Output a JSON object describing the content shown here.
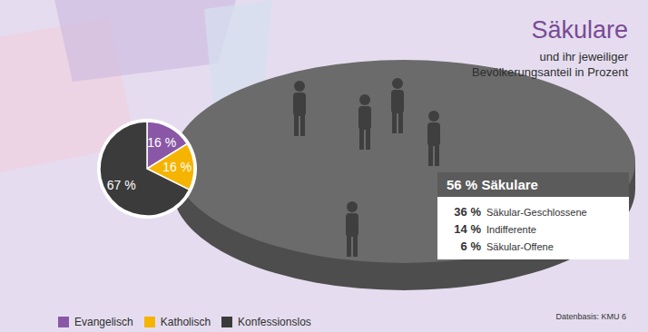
{
  "chart_data": {
    "type": "pie",
    "title": "Säkulare",
    "subtitle": "und ihr jeweiliger Bevölkerungsanteil in Prozent",
    "categories": [
      "Evangelisch",
      "Katholisch",
      "Konfessionslos"
    ],
    "values": [
      16,
      16,
      67
    ],
    "value_labels": [
      "16 %",
      "16 %",
      "67 %"
    ],
    "colors": [
      "#8a57a6",
      "#f5b400",
      "#3b3b3b"
    ],
    "data_labels": true,
    "legend": "bottom",
    "annotations": [
      {
        "text": "Säkulare",
        "value": 56,
        "value_label": "56 %",
        "items": [
          {
            "text": "Säkular-Geschlossene",
            "value": 36,
            "value_label": "36 %"
          },
          {
            "text": "Indifferente",
            "value": 14,
            "value_label": "14 %"
          },
          {
            "text": "Säkular-Offene",
            "value": 6,
            "value_label": "6 %"
          }
        ]
      }
    ],
    "caption": "Datenbasis: KMU 6"
  }
}
